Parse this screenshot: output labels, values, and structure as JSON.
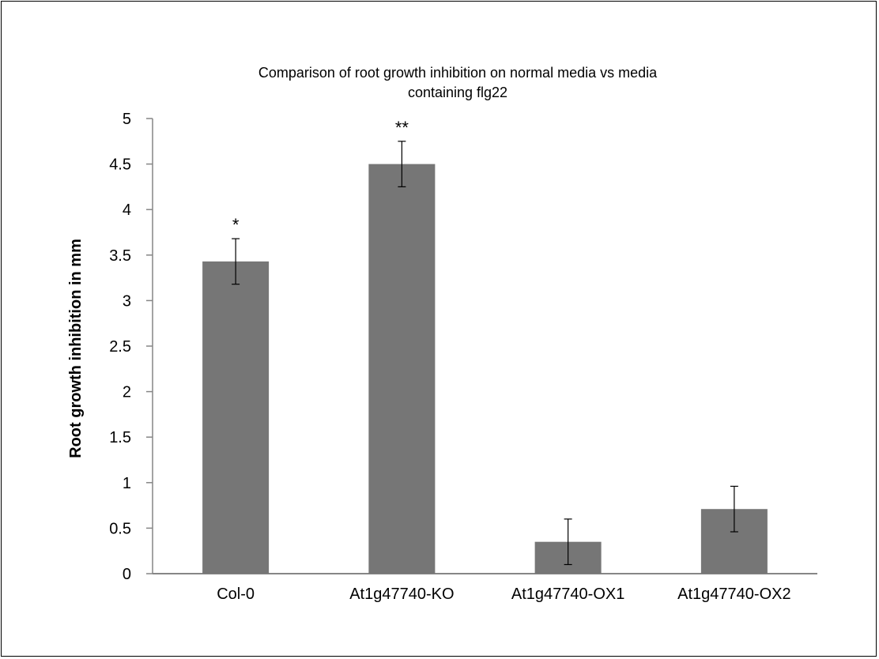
{
  "chart_data": {
    "type": "bar",
    "title_lines": [
      "Comparison of root growth inhibition on normal media vs media",
      "containing flg22"
    ],
    "xlabel": "",
    "ylabel": "Root growth inhibition in mm",
    "categories": [
      "Col-0",
      "At1g47740-KO",
      "At1g47740-OX1",
      "At1g47740-OX2"
    ],
    "values": [
      3.43,
      4.5,
      0.35,
      0.71
    ],
    "error": [
      0.25,
      0.25,
      0.25,
      0.25
    ],
    "significance": [
      "*",
      "**",
      "",
      ""
    ],
    "ylim": [
      0,
      5
    ],
    "yticks": [
      "0",
      "0.5",
      "1",
      "1.5",
      "2",
      "2.5",
      "3",
      "3.5",
      "4",
      "4.5",
      "5"
    ],
    "grid": false,
    "legend": "none",
    "bar_color": "#767676",
    "axis_color": "#868686"
  }
}
